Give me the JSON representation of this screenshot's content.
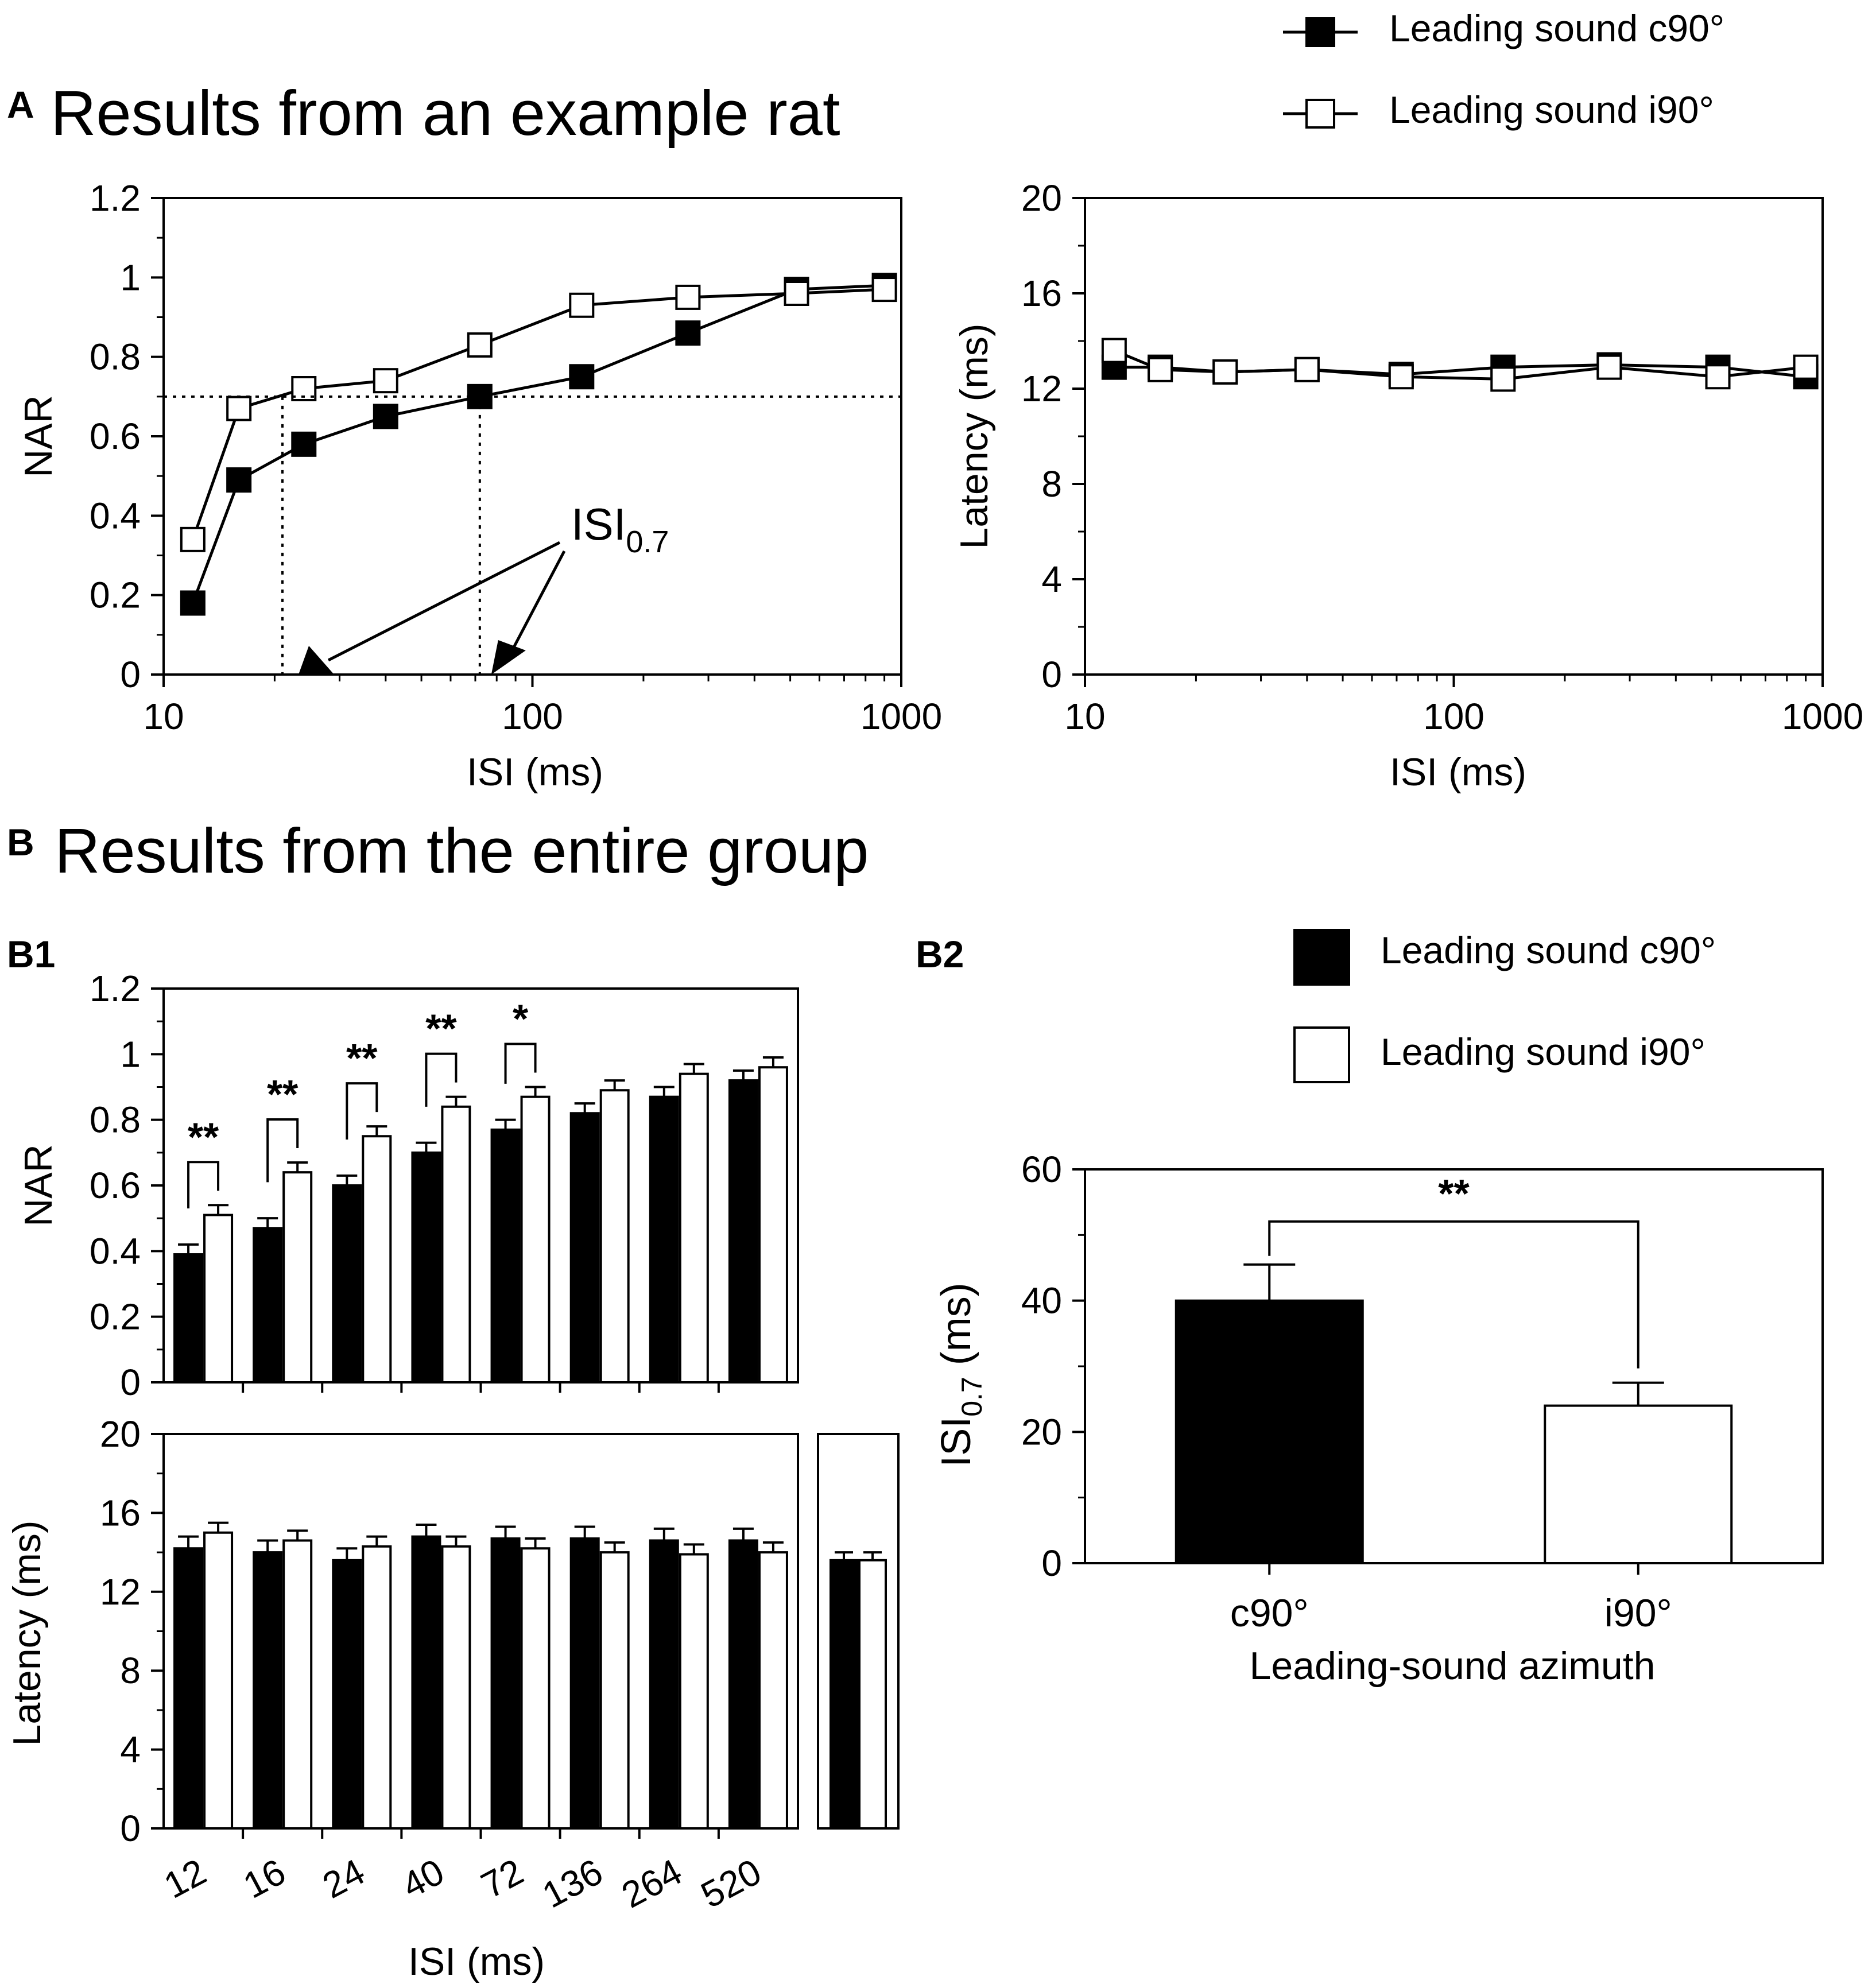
{
  "colors": {
    "c90": "#000000",
    "i90": "#ffffff",
    "stroke": "#000000"
  },
  "legend_top": {
    "c90": "Leading sound c90°",
    "i90": "Leading sound i90°"
  },
  "legend_b2": {
    "c90": "Leading sound c90°",
    "i90": "Leading sound i90°"
  },
  "panel_a": {
    "label": "A",
    "title": "Results from an example rat"
  },
  "panel_b": {
    "label": "B",
    "title": "Results from the entire group"
  },
  "panel_b1": {
    "label": "B1"
  },
  "panel_b2": {
    "label": "B2"
  },
  "chart_data": [
    {
      "id": "A_nar",
      "type": "line",
      "xscale": "log",
      "xlim": [
        10,
        1000
      ],
      "ylim": [
        0,
        1.2
      ],
      "xticks": [
        10,
        100,
        1000
      ],
      "xtick_labels": [
        "10",
        "100",
        "1000"
      ],
      "yticks": [
        0,
        0.2,
        0.4,
        0.6,
        0.8,
        1,
        1.2
      ],
      "ytick_labels": [
        "0",
        "0.2",
        "0.4",
        "0.6",
        "0.8",
        "1",
        "1.2"
      ],
      "xlabel": "ISI (ms)",
      "ylabel": "NAR",
      "x": [
        12,
        16,
        24,
        40,
        72,
        136,
        264,
        520,
        900
      ],
      "series": [
        {
          "name": "Leading sound c90°",
          "values": [
            0.18,
            0.49,
            0.58,
            0.65,
            0.7,
            0.75,
            0.86,
            0.97,
            0.98
          ]
        },
        {
          "name": "Leading sound i90°",
          "values": [
            0.34,
            0.67,
            0.72,
            0.74,
            0.83,
            0.93,
            0.95,
            0.96,
            0.97
          ]
        }
      ],
      "reference_y": 0.7,
      "isi_markers": [
        21,
        72
      ],
      "annotation": {
        "base": "ISI",
        "sub": "0.7"
      }
    },
    {
      "id": "A_latency",
      "type": "line",
      "xscale": "log",
      "xlim": [
        10,
        1000
      ],
      "ylim": [
        0,
        20
      ],
      "xticks": [
        10,
        100,
        1000
      ],
      "xtick_labels": [
        "10",
        "100",
        "1000"
      ],
      "yticks": [
        0,
        4,
        8,
        12,
        16,
        20
      ],
      "ytick_labels": [
        "0",
        "4",
        "8",
        "12",
        "16",
        "20"
      ],
      "xlabel": "ISI (ms)",
      "ylabel": "Latency (ms)",
      "x": [
        12,
        16,
        24,
        40,
        72,
        136,
        264,
        520,
        900
      ],
      "series": [
        {
          "name": "Leading sound c90°",
          "values": [
            12.9,
            12.9,
            12.7,
            12.8,
            12.6,
            12.9,
            13.0,
            12.9,
            12.5
          ]
        },
        {
          "name": "Leading sound i90°",
          "values": [
            13.6,
            12.8,
            12.7,
            12.8,
            12.5,
            12.4,
            12.9,
            12.5,
            12.9
          ]
        }
      ]
    },
    {
      "id": "B1_nar",
      "type": "bar",
      "categories": [
        "12",
        "16",
        "24",
        "40",
        "72",
        "136",
        "264",
        "520"
      ],
      "ylim": [
        0,
        1.2
      ],
      "yticks": [
        0,
        0.2,
        0.4,
        0.6,
        0.8,
        1,
        1.2
      ],
      "ytick_labels": [
        "0",
        "0.2",
        "0.4",
        "0.6",
        "0.8",
        "1",
        "1.2"
      ],
      "ylabel": "NAR",
      "series": [
        {
          "name": "Leading sound c90°",
          "values": [
            0.39,
            0.47,
            0.6,
            0.7,
            0.77,
            0.82,
            0.87,
            0.92
          ],
          "errors": [
            0.03,
            0.03,
            0.03,
            0.03,
            0.03,
            0.03,
            0.03,
            0.03
          ]
        },
        {
          "name": "Leading sound i90°",
          "values": [
            0.51,
            0.64,
            0.75,
            0.84,
            0.87,
            0.89,
            0.94,
            0.96
          ],
          "errors": [
            0.03,
            0.03,
            0.03,
            0.03,
            0.03,
            0.03,
            0.03,
            0.03
          ]
        }
      ],
      "significance": [
        "**",
        "**",
        "**",
        "**",
        "*",
        "",
        "",
        ""
      ]
    },
    {
      "id": "B1_latency",
      "type": "bar",
      "categories": [
        "12",
        "16",
        "24",
        "40",
        "72",
        "136",
        "264",
        "520"
      ],
      "xlabel": "ISI (ms)",
      "ylabel": "Latency (ms)",
      "ylim": [
        0,
        20
      ],
      "yticks": [
        0,
        4,
        8,
        12,
        16,
        20
      ],
      "ytick_labels": [
        "0",
        "4",
        "8",
        "12",
        "16",
        "20"
      ],
      "series": [
        {
          "name": "Leading sound c90°",
          "values": [
            14.2,
            14.0,
            13.6,
            14.8,
            14.7,
            14.7,
            14.6,
            14.6
          ],
          "errors": [
            0.6,
            0.6,
            0.6,
            0.6,
            0.6,
            0.6,
            0.6,
            0.6
          ]
        },
        {
          "name": "Leading sound i90°",
          "values": [
            15.0,
            14.6,
            14.3,
            14.3,
            14.2,
            14.0,
            13.9,
            14.0
          ],
          "errors": [
            0.5,
            0.5,
            0.5,
            0.5,
            0.5,
            0.5,
            0.5,
            0.5
          ]
        }
      ],
      "single_leading_sound": {
        "values": [
          13.6,
          13.6
        ],
        "errors": [
          0.4,
          0.4
        ]
      }
    },
    {
      "id": "B2_isi07",
      "type": "bar",
      "categories": [
        "c90°",
        "i90°"
      ],
      "values": [
        40,
        24
      ],
      "errors": [
        5.5,
        3.5
      ],
      "xlabel": "Leading-sound azimuth",
      "ylabel": {
        "base": "ISI",
        "sub": "0.7",
        "unit": " (ms)"
      },
      "ylim": [
        0,
        60
      ],
      "yticks": [
        0,
        20,
        40,
        60
      ],
      "ytick_labels": [
        "0",
        "20",
        "40",
        "60"
      ],
      "significance": "**"
    }
  ]
}
